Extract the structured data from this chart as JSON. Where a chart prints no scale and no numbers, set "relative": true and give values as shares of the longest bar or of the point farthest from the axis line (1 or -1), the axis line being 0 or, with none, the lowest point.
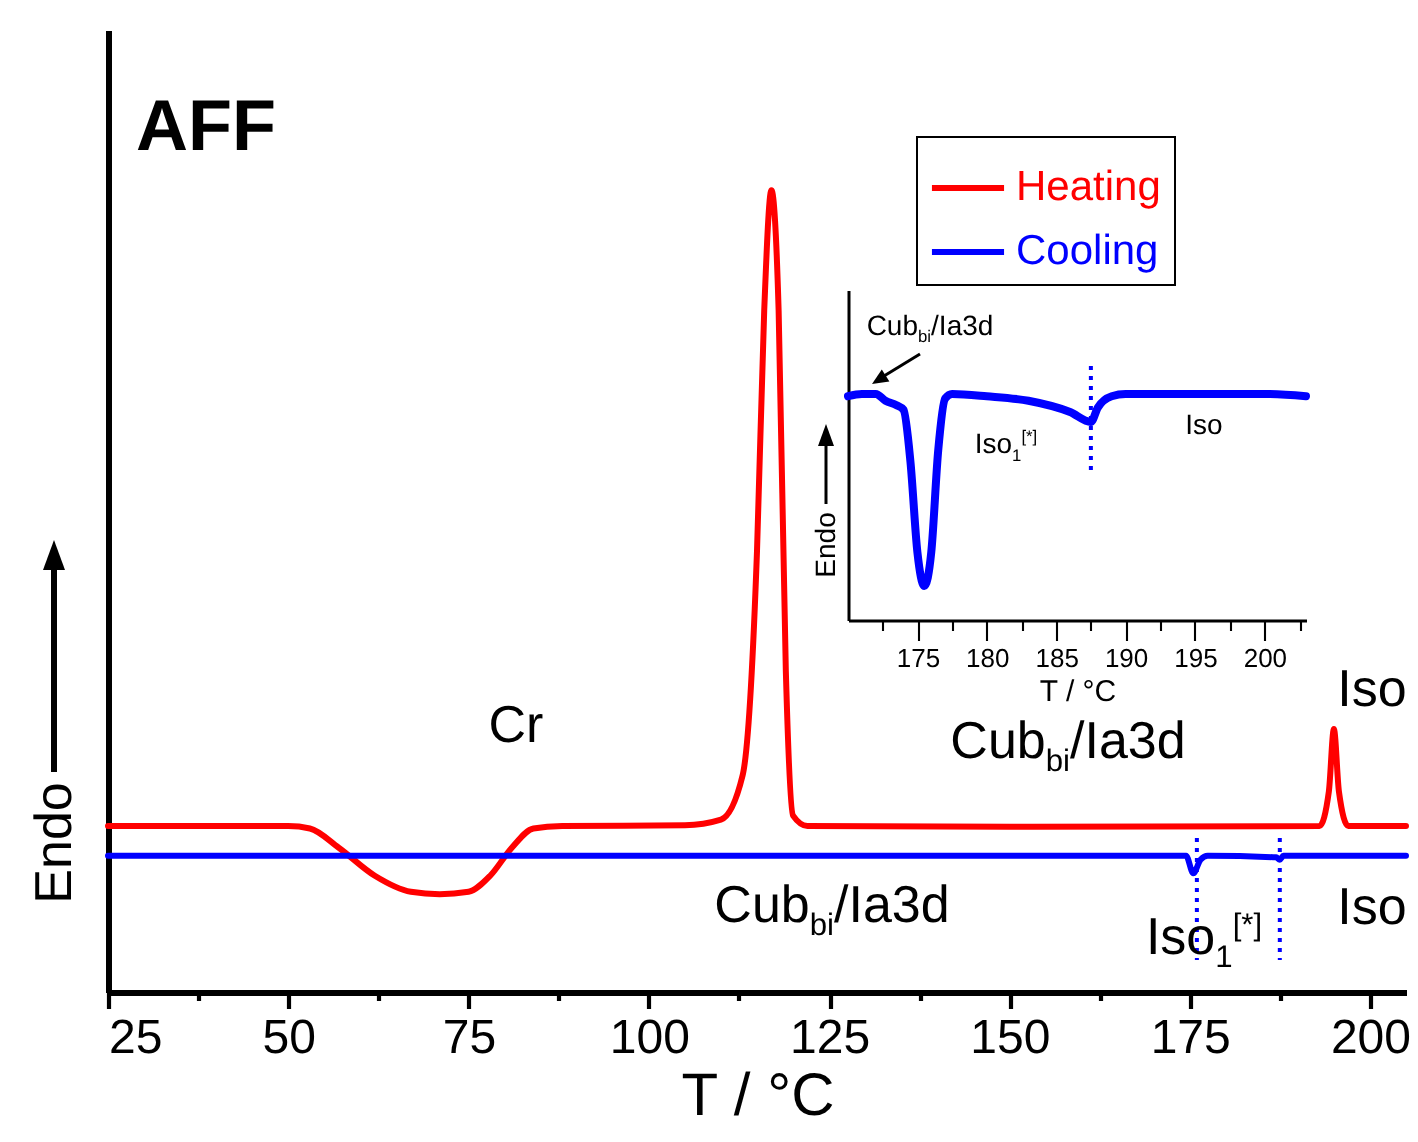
{
  "chart_data": [
    {
      "type": "line",
      "title": "AFF",
      "xlabel": "T / °C",
      "ylabel": "Endo",
      "relative": true,
      "xlim": [
        25,
        205
      ],
      "xticks": [
        25,
        {
          "value": 37.5,
          "label": null
        },
        50,
        {
          "value": 62.5,
          "label": null
        },
        75,
        {
          "value": 87.5,
          "label": null
        },
        100,
        {
          "value": 112.5,
          "label": null
        },
        125,
        {
          "value": 137.5,
          "label": null
        },
        150,
        {
          "value": 162.5,
          "label": null
        },
        175,
        {
          "value": 187.5,
          "label": null
        },
        200
      ],
      "legend": "top right",
      "series": [
        {
          "name": "Heating",
          "color": "#ff0000",
          "x": [
            25,
            50,
            53,
            57,
            62,
            67,
            71,
            75,
            78,
            81,
            84,
            88,
            105,
            110,
            113,
            115,
            116,
            117,
            118,
            119,
            120,
            122,
            150,
            193,
            194.3,
            195,
            195.7,
            197,
            205
          ],
          "values": [
            0.207,
            0.207,
            0.204,
            0.18,
            0.145,
            0.125,
            0.122,
            0.125,
            0.145,
            0.18,
            0.204,
            0.207,
            0.208,
            0.215,
            0.27,
            0.55,
            0.85,
            1.0,
            0.85,
            0.4,
            0.22,
            0.207,
            0.206,
            0.207,
            0.25,
            0.328,
            0.25,
            0.207,
            0.207
          ]
        },
        {
          "name": "Cooling",
          "color": "#0000ff",
          "x": [
            25,
            100,
            150,
            174.5,
            175.5,
            176.5,
            177.5,
            187,
            187.5,
            188,
            205
          ],
          "values": [
            0.17,
            0.17,
            0.17,
            0.17,
            0.148,
            0.165,
            0.17,
            0.168,
            0.165,
            0.17,
            0.17
          ]
        }
      ],
      "ref_lines": [
        {
          "axis": "x",
          "value": 176,
          "color": "#0000ff",
          "line_style": "dotted"
        },
        {
          "axis": "x",
          "value": 187.5,
          "color": "#0000ff",
          "line_style": "dotted"
        }
      ],
      "annotations": [
        "Cr",
        "Cub$_{bi}$/Ia3d",
        "Iso",
        "Cub$_{bi}$/Ia3d",
        "Iso$_{1}$$^{[*]}$",
        "Iso"
      ]
    },
    {
      "type": "line",
      "xlabel": "T / °C",
      "ylabel": "Endo",
      "relative": true,
      "xlim": [
        170,
        203
      ],
      "xticks": [
        {
          "value": 172.5,
          "label": null
        },
        175,
        {
          "value": 177.5,
          "label": null
        },
        180,
        {
          "value": 182.5,
          "label": null
        },
        185,
        {
          "value": 187.5,
          "label": null
        },
        190,
        {
          "value": 192.5,
          "label": null
        },
        195,
        {
          "value": 197.5,
          "label": null
        },
        200,
        {
          "value": 202.5,
          "label": null
        }
      ],
      "series": [
        {
          "color": "#0000ff",
          "x": [
            170,
            171,
            172,
            172.7,
            173.5,
            174,
            174.5,
            175,
            175.5,
            176,
            176.5,
            177,
            177.5,
            180,
            183,
            186,
            187.5,
            188,
            189,
            190,
            195,
            200,
            203
          ],
          "values": [
            0.99,
            1.0,
            1.0,
            0.97,
            0.95,
            0.93,
            0.7,
            0.3,
            0.15,
            0.3,
            0.75,
            0.98,
            1.0,
            0.99,
            0.97,
            0.92,
            0.876,
            0.94,
            0.99,
            1.0,
            1.0,
            1.0,
            0.99
          ]
        }
      ],
      "ref_lines": [
        {
          "axis": "x",
          "value": 187.5,
          "color": "#0000ff",
          "line_style": "dotted"
        }
      ],
      "annotations": [
        "Cub$_{bi}$/Ia3d",
        "Iso$_{1}$$^{[*]}$",
        "Iso"
      ]
    }
  ]
}
